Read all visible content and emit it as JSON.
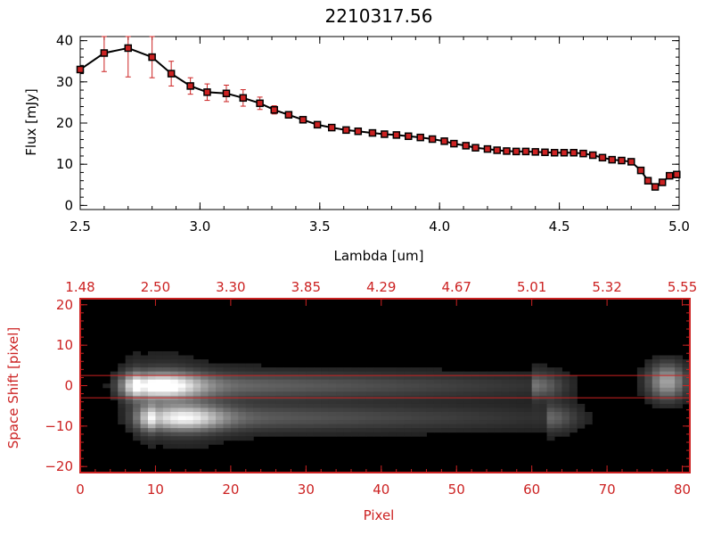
{
  "colors": {
    "spectrum": "#000000",
    "errorbar": "#cc2222",
    "marker_fill": "#cc2222",
    "accent": "#cc2222",
    "image_frame": "#cc2222"
  },
  "chart_data": [
    {
      "type": "line",
      "title": "2210317.56",
      "xlabel": "Lambda [um]",
      "ylabel": "Flux [mJy]",
      "xlim": [
        2.5,
        5.0
      ],
      "ylim": [
        -1,
        41
      ],
      "xticks": [
        2.5,
        3.0,
        3.5,
        4.0,
        4.5,
        5.0
      ],
      "xtick_labels": [
        "2.5",
        "3.0",
        "3.5",
        "4.0",
        "4.5",
        "5.0"
      ],
      "yticks": [
        0,
        10,
        20,
        30,
        40
      ],
      "ytick_labels": [
        "0",
        "10",
        "20",
        "30",
        "40"
      ],
      "series": [
        {
          "name": "flux",
          "x": [
            2.5,
            2.6,
            2.7,
            2.8,
            2.88,
            2.96,
            3.03,
            3.11,
            3.18,
            3.25,
            3.31,
            3.37,
            3.43,
            3.49,
            3.55,
            3.61,
            3.66,
            3.72,
            3.77,
            3.82,
            3.87,
            3.92,
            3.97,
            4.02,
            4.06,
            4.11,
            4.15,
            4.2,
            4.24,
            4.28,
            4.32,
            4.36,
            4.4,
            4.44,
            4.48,
            4.52,
            4.56,
            4.6,
            4.64,
            4.68,
            4.72,
            4.76,
            4.8,
            4.84,
            4.87,
            4.9,
            4.93,
            4.96,
            4.99
          ],
          "y": [
            33,
            37,
            38.2,
            36,
            32,
            29,
            27.5,
            27.2,
            26.1,
            24.8,
            23.2,
            22,
            20.8,
            19.6,
            18.9,
            18.3,
            18,
            17.6,
            17.3,
            17.1,
            16.8,
            16.5,
            16.1,
            15.6,
            15,
            14.5,
            14,
            13.7,
            13.4,
            13.2,
            13.1,
            13.1,
            13,
            12.9,
            12.8,
            12.8,
            12.8,
            12.6,
            12.2,
            11.6,
            11.1,
            10.9,
            10.6,
            8.5,
            6,
            4.5,
            5.6,
            7.2,
            7.5
          ],
          "yerr": [
            0,
            4.5,
            7,
            5,
            3,
            2,
            2,
            2,
            2,
            1.5,
            1,
            0.8,
            0.5,
            0.4,
            0.4,
            0.3,
            0.3,
            0.3,
            0.3,
            0.3,
            0.3,
            0.3,
            0.3,
            0.3,
            0.3,
            0.3,
            0.3,
            0.3,
            0.3,
            0.3,
            0.3,
            0.3,
            0.3,
            0.3,
            0.3,
            0.3,
            0.3,
            0.3,
            0.3,
            0.3,
            0.3,
            0.3,
            0.3,
            0.3,
            0.3,
            0.3,
            0.3,
            0.3,
            0
          ]
        }
      ]
    },
    {
      "type": "heatmap",
      "xlabel": "Pixel",
      "ylabel": "Space Shift [pixel]",
      "xlim": [
        0,
        81
      ],
      "ylim": [
        -21.5,
        21.5
      ],
      "xticks": [
        0,
        10,
        20,
        30,
        40,
        50,
        60,
        70,
        80
      ],
      "xtick_labels": [
        "0",
        "10",
        "20",
        "30",
        "40",
        "50",
        "60",
        "70",
        "80"
      ],
      "yticks": [
        -20,
        -10,
        0,
        10,
        20
      ],
      "ytick_labels": [
        "−20",
        "−10",
        "0",
        "10",
        "20"
      ],
      "top_axis": {
        "ticks": [
          0,
          10,
          20,
          30,
          40,
          50,
          60,
          70,
          80
        ],
        "tick_labels": [
          "1.48",
          "2.50",
          "3.30",
          "3.85",
          "4.29",
          "4.67",
          "5.01",
          "5.32",
          "5.55"
        ]
      },
      "hlines": [
        2.5,
        -3
      ],
      "sources": [
        {
          "name": "upper trace",
          "x0": 8,
          "x1": 60,
          "y": 0,
          "peak_x": 11,
          "peak": 1.0
        },
        {
          "name": "lower trace",
          "x0": 10,
          "x1": 62,
          "y": -8,
          "peak_x": 14,
          "peak": 0.85
        },
        {
          "name": "right blob",
          "x": 78,
          "y": 1,
          "peak": 0.6
        }
      ]
    }
  ]
}
